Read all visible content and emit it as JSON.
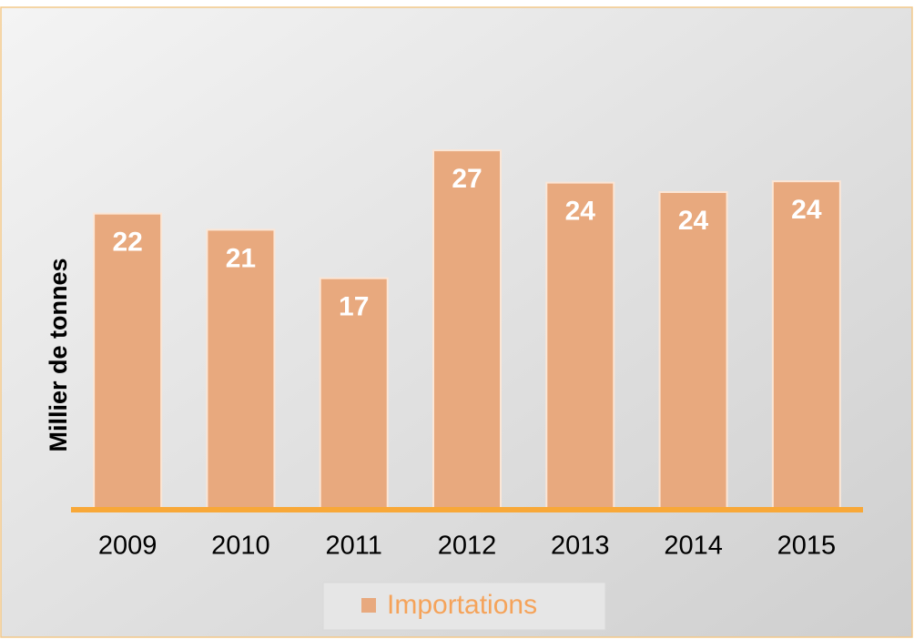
{
  "chart_data": {
    "type": "bar",
    "y_label": "Millier de tonnes",
    "categories": [
      "2009",
      "2010",
      "2011",
      "2012",
      "2013",
      "2014",
      "2015"
    ],
    "series": [
      {
        "name": "Importations",
        "color": "#e8a97e",
        "values": [
          22,
          20.8,
          17.2,
          26.7,
          24.3,
          23.6,
          24.4
        ],
        "value_labels": [
          "22",
          "21",
          "17",
          "27",
          "24",
          "24",
          "24"
        ]
      }
    ],
    "ylim": [
      0,
      33
    ]
  }
}
